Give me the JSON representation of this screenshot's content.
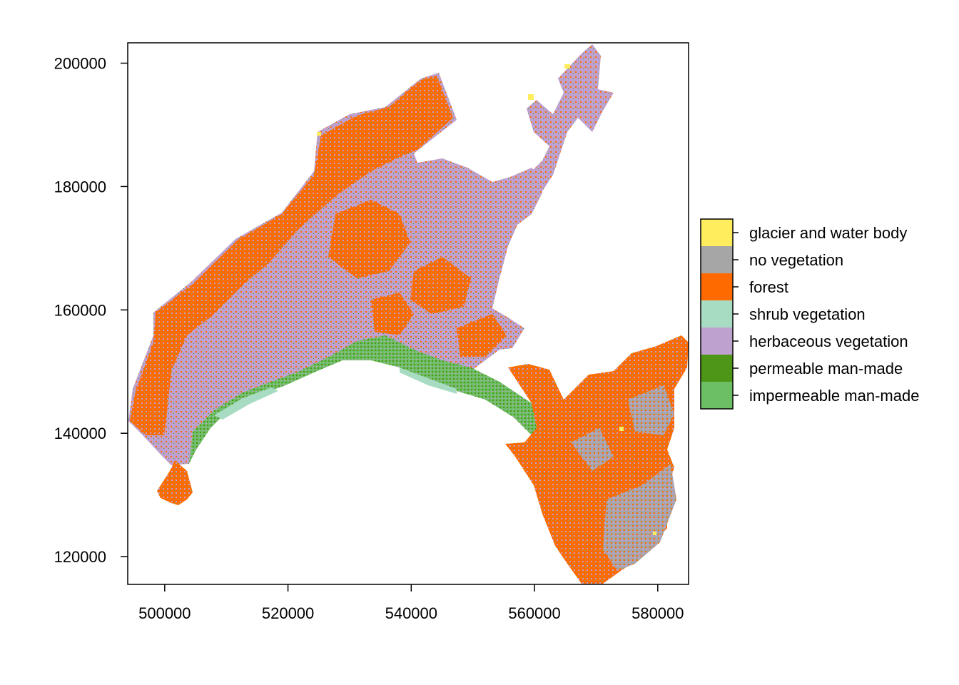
{
  "map": {
    "x_axis": {
      "ticks": [
        500000,
        520000,
        540000,
        560000,
        580000
      ],
      "tick_labels": [
        "500000",
        "520000",
        "540000",
        "560000",
        "580000"
      ],
      "range": [
        494000,
        585000
      ]
    },
    "y_axis": {
      "ticks": [
        120000,
        140000,
        160000,
        180000,
        200000
      ],
      "tick_labels": [
        "120000",
        "140000",
        "160000",
        "180000",
        "200000"
      ],
      "range": [
        115500,
        203300
      ]
    },
    "legend": {
      "position": "right",
      "items": [
        {
          "label": "glacier and water body",
          "color": "#FFED5E"
        },
        {
          "label": "no vegetation",
          "color": "#A6A6A6"
        },
        {
          "label": "forest",
          "color": "#FF6A00"
        },
        {
          "label": "shrub vegetation",
          "color": "#A8DCC2"
        },
        {
          "label": "herbaceous vegetation",
          "color": "#BEA1CF"
        },
        {
          "label": "permeable man-made",
          "color": "#4E9617"
        },
        {
          "label": "impermeable man-made",
          "color": "#6CC063"
        }
      ]
    }
  }
}
